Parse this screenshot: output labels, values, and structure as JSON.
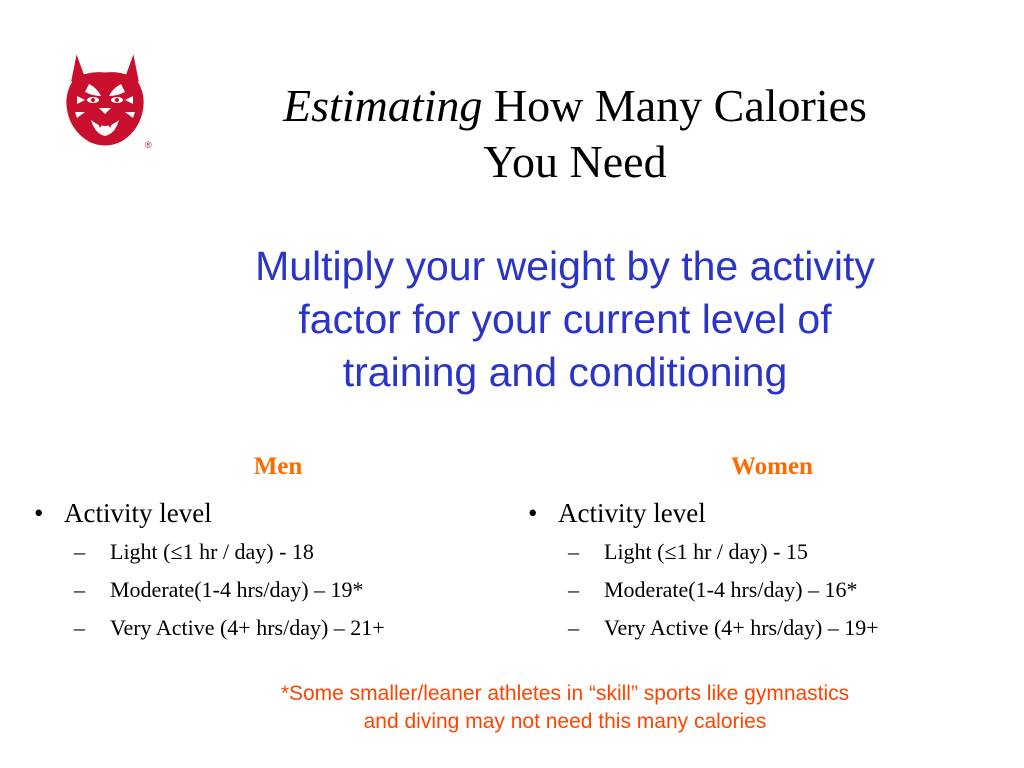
{
  "logo": {
    "icon": "wildcat-head-icon",
    "color": "#c8102e",
    "mark": "®"
  },
  "title": {
    "italic_part": "Estimating",
    "rest_line1": " How Many Calories",
    "line2": "You Need"
  },
  "subtitle": {
    "line1": "Multiply your weight by the activity",
    "line2": "factor for your current level of",
    "line3": "training and conditioning",
    "color": "#2a35c8"
  },
  "men": {
    "heading": "Men",
    "bullet": "Activity level",
    "items": [
      "Light (≤1 hr / day) - 18",
      "Moderate(1-4 hrs/day) – 19*",
      "Very Active (4+ hrs/day) – 21+"
    ]
  },
  "women": {
    "heading": "Women",
    "bullet": "Activity level",
    "items": [
      "Light (≤1 hr / day) - 15",
      "Moderate(1-4 hrs/day) – 16*",
      "Very Active (4+ hrs/day) – 19+"
    ]
  },
  "footnote": {
    "line1": "*Some smaller/leaner athletes in “skill” sports like gymnastics",
    "line2": "and diving may not need this many calories",
    "color": "#ff4400"
  },
  "heading_color": "#ff6a00"
}
